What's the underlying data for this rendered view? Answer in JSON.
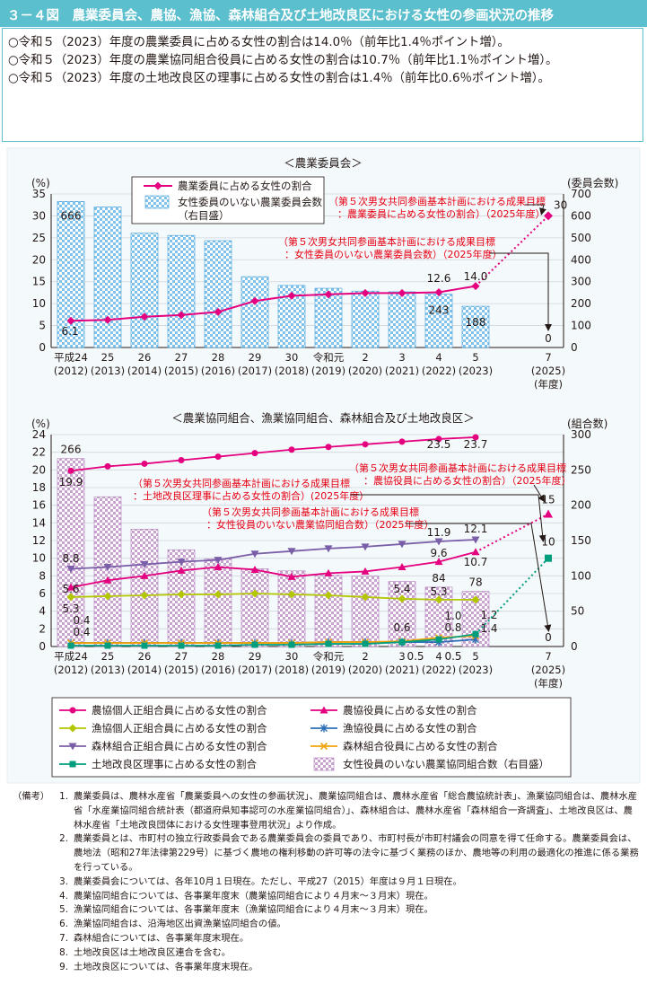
{
  "figure_title": "３－４図　農業委員会、農協、漁協、森林組合及び土地改良区における女性の参画状況の推移",
  "summary": [
    "○令和５（2023）年度の農業委員に占める女性の割合は14.0％（前年比1.4％ポイント増）。",
    "○令和５（2023）年度の農業協同組合役員に占める女性の割合は10.7％（前年比1.1％ポイント増）。",
    "○令和５（2023）年度の土地改良区の理事に占める女性の割合は1.4％（前年比0.6％ポイント増）。"
  ],
  "colors": {
    "title_bg": "#5bbfcd",
    "bar1": "#3b9bd8",
    "bar2": "#b07ab8",
    "pink": "#e4007f",
    "purple": "#7a5ea8",
    "green_yellow": "#b2c700",
    "blue": "#2e6fb7",
    "orange": "#f0a30a",
    "teal": "#009e7e",
    "annotation_red": "#e60012"
  },
  "chart_data": [
    {
      "type": "bar",
      "title": "＜農業委員会＞",
      "y_left_unit": "(%)",
      "y_right_unit": "(委員会数)",
      "ylim_left": [
        0,
        35
      ],
      "ylim_right": [
        0,
        700
      ],
      "y_left_ticks": [
        0,
        5,
        10,
        15,
        20,
        25,
        30,
        35
      ],
      "y_right_ticks": [
        0,
        100,
        200,
        300,
        400,
        500,
        600,
        700
      ],
      "x_label_suffix": "(年度)",
      "categories": [
        {
          "era": "平成24",
          "year": "(2012)"
        },
        {
          "era": "25",
          "year": "(2013)"
        },
        {
          "era": "26",
          "year": "(2014)"
        },
        {
          "era": "27",
          "year": "(2015)"
        },
        {
          "era": "28",
          "year": "(2016)"
        },
        {
          "era": "29",
          "year": "(2017)"
        },
        {
          "era": "30",
          "year": "(2018)"
        },
        {
          "era": "令和元",
          "year": "(2019)"
        },
        {
          "era": "2",
          "year": "(2020)"
        },
        {
          "era": "3",
          "year": "(2021)"
        },
        {
          "era": "4",
          "year": "(2022)"
        },
        {
          "era": "5",
          "year": "(2023)"
        },
        {
          "era": "7",
          "year": "(2025)"
        }
      ],
      "bar_series": {
        "name": "女性委員のいない農業委員会数",
        "name2": "（右目盛）",
        "axis": "right",
        "values": [
          666,
          641,
          521,
          511,
          487,
          323,
          283,
          270,
          257,
          254,
          243,
          188,
          null
        ],
        "labels": {
          "0": "666",
          "10": "243",
          "11": "188"
        }
      },
      "line_series": [
        {
          "name": "農業委員に占める女性の割合",
          "axis": "left",
          "values": [
            6.1,
            6.3,
            7.0,
            7.4,
            8.1,
            10.6,
            11.8,
            12.1,
            12.4,
            12.4,
            12.6,
            14.0,
            null
          ],
          "labels": {
            "0": "6.1",
            "10": "12.6",
            "11": "14.0"
          }
        }
      ],
      "targets": [
        {
          "label": "30",
          "value_left": 30
        },
        {
          "label": "0",
          "value_right": 0
        }
      ],
      "annotations": [
        "（第５次男女共同参画基本計画における成果目標",
        "：農業委員に占める女性の割合）（2025年度）",
        "（第５次男女共同参画基本計画における成果目標",
        "：女性委員のいない農業委員会数）（2025年度）"
      ]
    },
    {
      "type": "bar",
      "title": "＜農業協同組合、漁業協同組合、森林組合及び土地改良区＞",
      "y_left_unit": "(%)",
      "y_right_unit": "(組合数)",
      "ylim_left": [
        0,
        24
      ],
      "ylim_right": [
        0,
        300
      ],
      "y_left_ticks": [
        0,
        2,
        4,
        6,
        8,
        10,
        12,
        14,
        16,
        18,
        20,
        22,
        24
      ],
      "y_right_ticks": [
        0,
        50,
        100,
        150,
        200,
        250,
        300
      ],
      "x_label_suffix": "(年度)",
      "bar_series": {
        "name": "女性役員のいない農業協同組合数（右目盛）",
        "axis": "right",
        "values": [
          266,
          212,
          166,
          137,
          124,
          110,
          107,
          101,
          100,
          92,
          84,
          78,
          null
        ],
        "labels": {
          "0": "266",
          "10": "84",
          "11": "78"
        }
      },
      "line_series": [
        {
          "name": "農協個人正組合員に占める女性の割合",
          "color": "pink",
          "marker": "circle",
          "values": [
            19.9,
            20.4,
            20.7,
            21.1,
            21.5,
            21.9,
            22.3,
            22.6,
            22.9,
            23.2,
            23.5,
            23.7,
            null
          ],
          "labels": {
            "0": "19.9",
            "10": "23.5",
            "11": "23.7"
          }
        },
        {
          "name": "農協役員に占める女性の割合",
          "color": "pink",
          "marker": "triangle",
          "values": [
            6.7,
            7.5,
            8.0,
            8.6,
            9.0,
            8.7,
            7.9,
            8.3,
            8.5,
            9.0,
            9.6,
            10.7,
            null
          ],
          "labels": {
            "10": "9.6",
            "11": "10.7"
          }
        },
        {
          "name": "漁協個人正組合員に占める女性の割合",
          "color": "green_yellow",
          "marker": "diamond",
          "values": [
            5.6,
            5.7,
            5.8,
            5.9,
            5.9,
            6.0,
            5.9,
            5.8,
            5.6,
            5.4,
            5.3,
            5.3,
            null
          ],
          "labels": {
            "0": "5.6",
            "9": "5.4",
            "10": "5.3"
          }
        },
        {
          "name": "漁協役員に占める女性の割合",
          "color": "blue",
          "marker": "asterisk",
          "values": [
            0.4,
            0.4,
            0.4,
            0.4,
            0.4,
            0.4,
            0.4,
            0.5,
            0.5,
            0.5,
            0.5,
            0.8,
            null
          ],
          "labels": {
            "0": "0.4",
            "9": "0.5",
            "10": "0.5"
          }
        },
        {
          "name": "森林組合正組合員に占める女性の割合",
          "color": "purple",
          "marker": "triangle-down",
          "values": [
            8.8,
            9.0,
            9.3,
            9.6,
            9.8,
            10.5,
            10.8,
            11.1,
            11.3,
            11.6,
            11.9,
            12.1,
            null
          ],
          "labels": {
            "0": "8.8",
            "10": "11.9",
            "11": "12.1"
          }
        },
        {
          "name": "森林組合役員に占める女性の割合",
          "color": "orange",
          "marker": "x",
          "values": [
            0.4,
            0.4,
            0.4,
            0.4,
            0.4,
            0.4,
            0.4,
            0.5,
            0.5,
            0.6,
            1.0,
            1.2,
            null
          ],
          "labels": {
            "0": "0.4",
            "9": "0.6",
            "10": "1.0",
            "11": "1.2"
          }
        },
        {
          "name": "土地改良区理事に占める女性の割合",
          "color": "teal",
          "marker": "square",
          "values": [
            0.1,
            0.1,
            0.1,
            0.1,
            0.1,
            0.2,
            0.2,
            0.3,
            0.3,
            0.5,
            0.8,
            1.4,
            null
          ],
          "labels": {
            "10": "0.8",
            "11": "1.4"
          }
        }
      ],
      "extra_labels": [
        "5.3",
        "0.4",
        "0.4"
      ],
      "targets": [
        {
          "label": "15",
          "value_left": 15
        },
        {
          "label": "10",
          "value_left": 10
        },
        {
          "label": "0",
          "value_right": 0
        }
      ],
      "annotations": [
        "（第５次男女共同参画基本計画における成果目標",
        "：農協役員に占める女性の割合）（2025年度）",
        "（第５次男女共同参画基本計画における成果目標",
        "：土地改良区理事に占める女性の割合）(2025年度）",
        "（第５次男女共同参画基本計画における成果目標",
        "：女性役員のいない農業協同組合数）（2025年度）"
      ]
    }
  ],
  "legend2": [
    {
      "marker": "circle",
      "color": "pink",
      "label": "農協個人正組合員に占める女性の割合"
    },
    {
      "marker": "triangle",
      "color": "pink",
      "label": "農協役員に占める女性の割合"
    },
    {
      "marker": "diamond",
      "color": "green_yellow",
      "label": "漁協個人正組合員に占める女性の割合"
    },
    {
      "marker": "asterisk",
      "color": "blue",
      "label": "漁協役員に占める女性の割合"
    },
    {
      "marker": "triangle-down",
      "color": "purple",
      "label": "森林組合正組合員に占める女性の割合"
    },
    {
      "marker": "x",
      "color": "orange",
      "label": "森林組合役員に占める女性の割合"
    },
    {
      "marker": "square",
      "color": "teal",
      "label": "土地改良区理事に占める女性の割合"
    },
    {
      "marker": "bar",
      "color": "bar2",
      "label": "女性役員のいない農業協同組合数（右目盛）"
    }
  ],
  "notes": {
    "head": "（備考）",
    "items": [
      {
        "num": "1.",
        "text": "農業委員は、農林水産省「農業委員への女性の参画状況」、農業協同組合は、農林水産省「総合農協統計表」、漁業協同組合は、農林水産省「水産業協同組合統計表（都道府県知事認可の水産業協同組合）」、森林組合は、農林水産省「森林組合一斉調査」、土地改良区は、農林水産省「土地改良団体における女性理事登用状況」より作成。"
      },
      {
        "num": "2.",
        "text": "農業委員とは、市町村の独立行政委員会である農業委員会の委員であり、市町村長が市町村議会の同意を得て任命する。農業委員会は、農地法（昭和27年法律第229号）に基づく農地の権利移動の許可等の法令に基づく業務のほか、農地等の利用の最適化の推進に係る業務を行っている。"
      },
      {
        "num": "3.",
        "text": "農業委員会については、各年10月１日現在。ただし、平成27（2015）年度は９月１日現在。"
      },
      {
        "num": "4.",
        "text": "農業協同組合については、各事業年度末（農業協同組合により４月末～３月末）現在。"
      },
      {
        "num": "5.",
        "text": "漁業協同組合については、各事業年度末（漁業協同組合により４月末～３月末）現在。"
      },
      {
        "num": "6.",
        "text": "漁業協同組合は、沿海地区出資漁業協同組合の値。"
      },
      {
        "num": "7.",
        "text": "森林組合については、各事業年度末現在。"
      },
      {
        "num": "8.",
        "text": "土地改良区は土地改良区連合を含む。"
      },
      {
        "num": "9.",
        "text": "土地改良区については、各事業年度末現在。"
      }
    ]
  }
}
